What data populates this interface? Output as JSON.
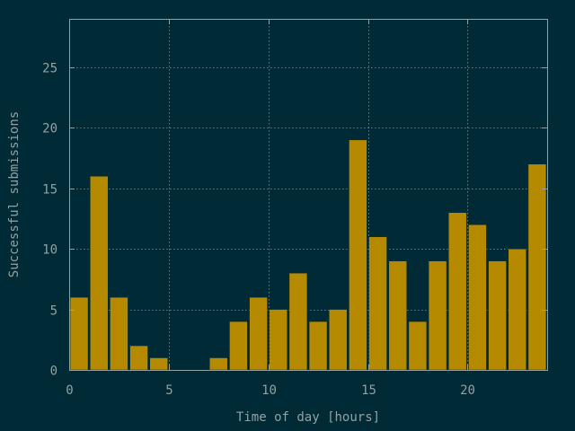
{
  "chart_data": {
    "type": "bar",
    "xlabel": "Time of day [hours]",
    "ylabel": "Successful submissions",
    "xlim": [
      0,
      24
    ],
    "ylim": [
      0,
      29
    ],
    "x": [
      0.5,
      1.5,
      2.5,
      3.5,
      4.5,
      5.5,
      6.5,
      7.5,
      8.5,
      9.5,
      10.5,
      11.5,
      12.5,
      13.5,
      14.5,
      15.5,
      16.5,
      17.5,
      18.5,
      19.5,
      20.5,
      21.5,
      22.5,
      23.5
    ],
    "values": [
      6,
      16,
      6,
      2,
      1,
      0,
      0,
      1,
      4,
      6,
      5,
      8,
      4,
      5,
      19,
      11,
      9,
      4,
      9,
      13,
      12,
      9,
      10,
      17
    ],
    "bar_width": 0.9,
    "xticks": [
      0,
      5,
      10,
      15,
      20
    ],
    "yticks": [
      0,
      5,
      10,
      15,
      20,
      25
    ],
    "xtick_labels": [
      "0",
      "5",
      "10",
      "15",
      "20"
    ],
    "ytick_labels": [
      "0",
      "5",
      "10",
      "15",
      "20",
      "25"
    ],
    "grid": true,
    "colors": {
      "background": "#002b36",
      "bar": "#b58900",
      "bar_edge": "#002b36",
      "text": "#93a1a1",
      "axis": "#93a1a1"
    }
  }
}
